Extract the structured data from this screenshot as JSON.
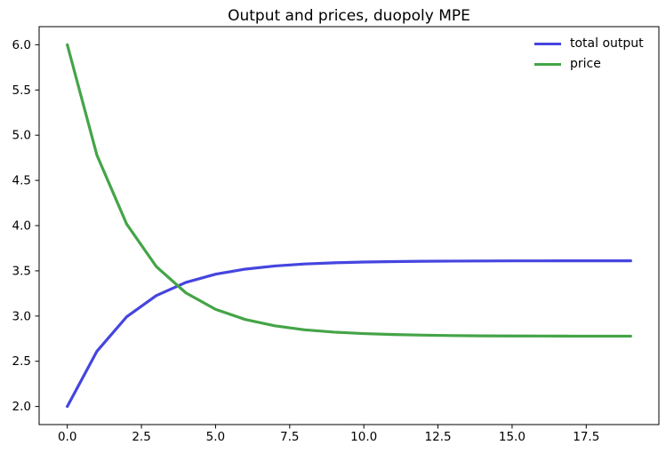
{
  "chart_data": {
    "type": "line",
    "title": "Output and prices, duopoly MPE",
    "xlabel": "",
    "ylabel": "",
    "x": [
      0,
      1,
      2,
      3,
      4,
      5,
      6,
      7,
      8,
      9,
      10,
      11,
      12,
      13,
      14,
      15,
      16,
      17,
      18,
      19
    ],
    "series": [
      {
        "name": "total output",
        "color": "#4545e0",
        "values": [
          2.0,
          2.611,
          2.991,
          3.226,
          3.372,
          3.463,
          3.519,
          3.554,
          3.576,
          3.589,
          3.597,
          3.602,
          3.606,
          3.608,
          3.609,
          3.61,
          3.61,
          3.611,
          3.611,
          3.611
        ]
      },
      {
        "name": "price",
        "color": "#44a447",
        "values": [
          6.0,
          4.778,
          4.018,
          3.548,
          3.256,
          3.074,
          2.962,
          2.892,
          2.848,
          2.822,
          2.806,
          2.796,
          2.789,
          2.784,
          2.781,
          2.78,
          2.779,
          2.778,
          2.778,
          2.778
        ]
      }
    ],
    "xlim": [
      -0.95,
      19.95
    ],
    "ylim": [
      1.8,
      6.2
    ],
    "xticks": {
      "values": [
        0,
        2.5,
        5,
        7.5,
        10,
        12.5,
        15,
        17.5
      ],
      "labels": [
        "0.0",
        "2.5",
        "5.0",
        "7.5",
        "10.0",
        "12.5",
        "15.0",
        "17.5"
      ]
    },
    "yticks": {
      "values": [
        2.0,
        2.5,
        3.0,
        3.5,
        4.0,
        4.5,
        5.0,
        5.5,
        6.0
      ],
      "labels": [
        "2.0",
        "2.5",
        "3.0",
        "3.5",
        "4.0",
        "4.5",
        "5.0",
        "5.5",
        "6.0"
      ]
    },
    "grid": false,
    "legend_position": "upper right",
    "line_width": 3.2,
    "axis_color": "#000000",
    "background": "#ffffff"
  }
}
